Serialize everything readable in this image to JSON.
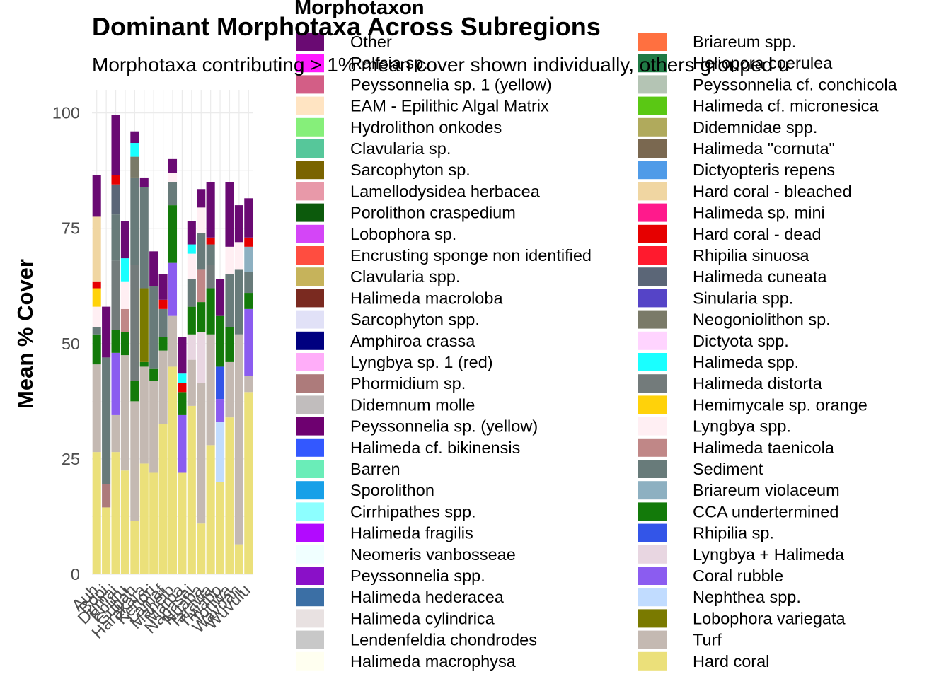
{
  "chart_data": {
    "type": "bar",
    "stacked": true,
    "title": "Dominant Morphotaxa Across Subregions",
    "subtitle": "Morphotaxa contributing > 1% mean cover shown individually, others grouped u",
    "xlabel": "",
    "ylabel": "Mean % Cover",
    "ylim": [
      0,
      105
    ],
    "yticks": [
      0,
      25,
      50,
      75,
      100
    ],
    "grid": true,
    "legend_title": "Morphotaxon",
    "legend_position": "right",
    "categories": [
      "Auh",
      "Bopi",
      "Dumai",
      "Eburu",
      "Gubah",
      "Harakara",
      "Kenori",
      "Lamaf",
      "Maheib",
      "Maroa",
      "Napasai",
      "Nuaba",
      "Tarawa",
      "Tiwabo",
      "Toriwa",
      "Wavoan",
      "Wuvulu"
    ],
    "legend": [
      {
        "name": "Other",
        "color": "#6a0a73"
      },
      {
        "name": "Ralfsia sp.",
        "color": "#ff1aff"
      },
      {
        "name": "Peyssonnelia sp. 1 (yellow)",
        "color": "#d35e86"
      },
      {
        "name": "EAM - Epilithic Algal Matrix",
        "color": "#ffe4c2"
      },
      {
        "name": "Hydrolithon onkodes",
        "color": "#86ef7a"
      },
      {
        "name": "Clavularia sp.",
        "color": "#56c79a"
      },
      {
        "name": "Sarcophyton sp.",
        "color": "#7a6400"
      },
      {
        "name": "Lamellodysidea herbacea",
        "color": "#e899a9"
      },
      {
        "name": "Porolithon craspedium",
        "color": "#0c5a0c"
      },
      {
        "name": "Lobophora sp.",
        "color": "#d445f7"
      },
      {
        "name": "Encrusting sponge non identified",
        "color": "#ff4d40"
      },
      {
        "name": "Clavularia spp.",
        "color": "#c6b35b"
      },
      {
        "name": "Halimeda macroloba",
        "color": "#7a2a20"
      },
      {
        "name": "Sarcophyton spp.",
        "color": "#e1e1f7"
      },
      {
        "name": "Amphiroa crassa",
        "color": "#000080"
      },
      {
        "name": "Lyngbya sp. 1 (red)",
        "color": "#ffadf9"
      },
      {
        "name": "Phormidium sp.",
        "color": "#ad7b7b"
      },
      {
        "name": "Didemnum molle",
        "color": "#c1bdbd"
      },
      {
        "name": "Peyssonnelia sp. (yellow)",
        "color": "#6e0070"
      },
      {
        "name": "Halimeda cf. bikinensis",
        "color": "#3358ff"
      },
      {
        "name": "Barren",
        "color": "#6aedb8"
      },
      {
        "name": "Sporolithon",
        "color": "#17a0e8"
      },
      {
        "name": "Cirrhipathes spp.",
        "color": "#8dffff"
      },
      {
        "name": "Halimeda fragilis",
        "color": "#b20aff"
      },
      {
        "name": "Neomeris vanbosseae",
        "color": "#f0ffff"
      },
      {
        "name": "Peyssonnelia spp.",
        "color": "#8a10c8"
      },
      {
        "name": "Halimeda hederacea",
        "color": "#3b6fa5"
      },
      {
        "name": "Halimeda cylindrica",
        "color": "#e8e1e1"
      },
      {
        "name": "Lendenfeldia chondrodes",
        "color": "#c8c8c8"
      },
      {
        "name": "Halimeda macrophysa",
        "color": "#fffff0"
      },
      {
        "name": "Briareum spp.",
        "color": "#ff7040"
      },
      {
        "name": "Heliopora coerulea",
        "color": "#207a45"
      },
      {
        "name": "Peyssonnelia cf. conchicola",
        "color": "#b4c4b4"
      },
      {
        "name": "Halimeda cf. micronesica",
        "color": "#5ac814"
      },
      {
        "name": "Didemnidae spp.",
        "color": "#b0aa5c"
      },
      {
        "name": "Halimeda \"cornuta\"",
        "color": "#7a6850"
      },
      {
        "name": "Dictyopteris repens",
        "color": "#4f9be8"
      },
      {
        "name": "Hard coral - bleached",
        "color": "#f0d6a2"
      },
      {
        "name": "Halimeda sp. mini",
        "color": "#ff1a8c"
      },
      {
        "name": "Hard coral - dead",
        "color": "#e60000"
      },
      {
        "name": "Rhipilia sinuosa",
        "color": "#ff1a2e"
      },
      {
        "name": "Halimeda cuneata",
        "color": "#5b6677"
      },
      {
        "name": "Sinularia spp.",
        "color": "#5544c7"
      },
      {
        "name": "Neogoniolithon sp.",
        "color": "#7a7a68"
      },
      {
        "name": "Dictyota spp.",
        "color": "#ffd4ff"
      },
      {
        "name": "Halimeda spp.",
        "color": "#1affff"
      },
      {
        "name": "Halimeda distorta",
        "color": "#737b7b"
      },
      {
        "name": "Hemimycale sp. orange",
        "color": "#ffd20a"
      },
      {
        "name": "Lyngbya spp.",
        "color": "#ffeff3"
      },
      {
        "name": "Halimeda taenicola",
        "color": "#c08787"
      },
      {
        "name": "Sediment",
        "color": "#687b7a"
      },
      {
        "name": "Briareum violaceum",
        "color": "#8db0c1"
      },
      {
        "name": "CCA undertermined",
        "color": "#137a0a"
      },
      {
        "name": "Rhipilia sp.",
        "color": "#3355e8"
      },
      {
        "name": "Lyngbya + Halimeda",
        "color": "#e8d6e1"
      },
      {
        "name": "Coral rubble",
        "color": "#8b5cf0"
      },
      {
        "name": "Nephthea spp.",
        "color": "#c1dcff"
      },
      {
        "name": "Lobophora variegata",
        "color": "#7a7a00"
      },
      {
        "name": "Turf",
        "color": "#c4b9b2"
      },
      {
        "name": "Hard coral",
        "color": "#ebe07a"
      }
    ],
    "series": [
      {
        "name": "Hard coral",
        "values": [
          26.5,
          14.5,
          26.5,
          22.5,
          11.5,
          24,
          22,
          32.5,
          45,
          22,
          36.5,
          11,
          28,
          20,
          34,
          6.5,
          39.5
        ]
      },
      {
        "name": "Turf",
        "values": [
          19,
          0,
          8,
          25,
          26,
          21,
          20,
          16,
          11,
          0,
          10,
          30.5,
          24,
          0,
          12,
          45.5,
          3.5
        ]
      },
      {
        "name": "Phormidium sp.",
        "values": [
          0,
          5,
          0,
          0,
          0,
          0,
          0,
          0,
          0,
          0,
          0,
          0,
          0,
          0,
          0,
          0,
          0
        ]
      },
      {
        "name": "Sediment",
        "values": [
          0,
          27.5,
          0,
          0,
          0,
          0,
          0,
          0,
          0,
          0,
          0,
          0,
          0,
          0,
          0,
          0,
          0
        ]
      },
      {
        "name": "Lyngbya + Halimeda",
        "values": [
          0,
          0,
          0,
          0,
          0,
          0,
          0,
          0,
          0,
          0,
          5.5,
          11,
          0,
          0,
          0,
          0,
          0
        ]
      },
      {
        "name": "Nephthea spp.",
        "values": [
          0,
          0,
          0,
          0,
          0,
          0,
          0,
          0,
          0,
          0,
          0,
          0,
          0,
          13,
          0,
          0,
          0
        ]
      },
      {
        "name": "Coral rubble",
        "values": [
          0,
          0,
          13.5,
          0,
          0,
          0,
          0,
          0,
          11.5,
          12.5,
          0,
          0,
          0,
          5,
          0,
          0,
          14.5
        ]
      },
      {
        "name": "Rhipilia sp.",
        "values": [
          0,
          0,
          0,
          0,
          0,
          0,
          0,
          0,
          0,
          0,
          0,
          0,
          0,
          7,
          0,
          0,
          0
        ]
      },
      {
        "name": "CCA undertermined",
        "values": [
          6.5,
          0,
          5,
          5,
          4.5,
          1,
          2.5,
          3,
          12.5,
          5,
          6,
          6.5,
          10,
          11,
          7.5,
          0,
          3.5
        ]
      },
      {
        "name": "Lobophora variegata",
        "values": [
          0,
          0,
          0,
          0,
          0,
          16,
          0,
          0,
          0,
          0,
          0,
          0,
          0,
          0,
          0,
          0,
          0
        ]
      },
      {
        "name": "Halimeda distorta",
        "values": [
          0,
          0,
          15,
          0,
          25,
          0,
          0,
          0,
          0,
          0,
          0,
          0,
          5,
          0,
          0,
          0,
          0
        ]
      },
      {
        "name": "Halimeda taenicola",
        "values": [
          0,
          0,
          0,
          5,
          0,
          0,
          0,
          0,
          0,
          0,
          0,
          7,
          0,
          0,
          0,
          0,
          0
        ]
      },
      {
        "name": "Sediment",
        "values": [
          1.5,
          0,
          10,
          0,
          19,
          22,
          18,
          6,
          5,
          0,
          6,
          8,
          4.5,
          0,
          11.5,
          14,
          4.5
        ]
      },
      {
        "name": "Briareum violaceum",
        "values": [
          0,
          0,
          0,
          0,
          0,
          0,
          0,
          0,
          0,
          0,
          0,
          0,
          0,
          0,
          0,
          0,
          5.5
        ]
      },
      {
        "name": "Halimeda cuneata",
        "values": [
          0,
          0,
          6.5,
          0,
          0,
          0,
          0,
          0,
          0,
          0,
          0,
          0,
          0,
          0,
          0,
          0,
          0
        ]
      },
      {
        "name": "Neogoniolithon sp.",
        "values": [
          0,
          0,
          0,
          0,
          4.5,
          0,
          0,
          0,
          0,
          0,
          0,
          0,
          0,
          0,
          0,
          0,
          0
        ]
      },
      {
        "name": "Lyngbya spp.",
        "values": [
          4.5,
          0,
          0,
          6,
          0,
          0,
          0,
          0,
          2,
          0,
          5.5,
          5.5,
          0,
          0,
          6,
          6,
          0
        ]
      },
      {
        "name": "Hemimycale sp. orange",
        "values": [
          4,
          0,
          0,
          0,
          0,
          0,
          0,
          0,
          0,
          0,
          0,
          0,
          0,
          0,
          0,
          0,
          0
        ]
      },
      {
        "name": "Hard coral - dead",
        "values": [
          1.5,
          0,
          2,
          0,
          0,
          0,
          0,
          2,
          0,
          2,
          0,
          0,
          1.5,
          0,
          0,
          0,
          2
        ]
      },
      {
        "name": "Halimeda spp.",
        "values": [
          0,
          0,
          0,
          5,
          3,
          0,
          0,
          0,
          0,
          2,
          2,
          0,
          0,
          0,
          0,
          0,
          0
        ]
      },
      {
        "name": "Hard coral - bleached",
        "values": [
          14,
          0,
          0,
          0,
          0,
          0,
          0,
          0,
          0,
          0,
          0,
          0,
          0,
          0,
          0,
          0,
          0
        ]
      },
      {
        "name": "Other",
        "values": [
          9,
          11,
          13,
          8,
          2.5,
          2,
          7.5,
          5.5,
          3,
          8,
          5,
          4,
          12,
          8,
          14,
          8,
          8.5
        ]
      }
    ]
  }
}
